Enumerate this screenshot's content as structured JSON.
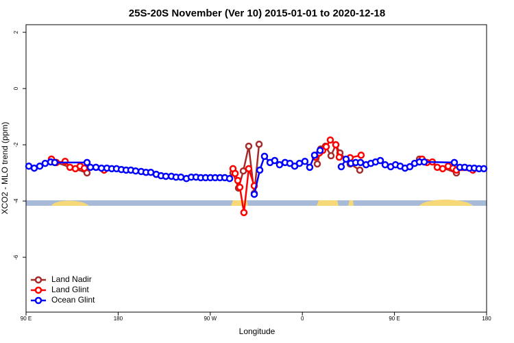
{
  "chart_data": {
    "type": "line",
    "title": "25S-20S November (Ver 10)   2015-01-01 to 2020-12-18",
    "xlabel": "Longitude",
    "ylabel": "XCO2 - MLO trend (ppm)",
    "xlim": [
      90,
      540
    ],
    "ylim": [
      -7.95,
      2.27
    ],
    "xticks": [
      {
        "value": 90,
        "label": "90 E"
      },
      {
        "value": 180,
        "label": "180"
      },
      {
        "value": 270,
        "label": "90 W"
      },
      {
        "value": 360,
        "label": "0"
      },
      {
        "value": 450,
        "label": "90 E"
      },
      {
        "value": 540,
        "label": "180"
      }
    ],
    "yticks": [
      2,
      0,
      -2,
      -4,
      -6
    ],
    "grid": false,
    "legend": "bottom-left",
    "series": [
      {
        "name": "Land Nadir",
        "color": "#a52a2a",
        "x": [
          114.8,
          119.5,
          149.6,
          null,
          292.2,
          297.6,
          302.3,
          307.6,
          313,
          317.7,
          null,
          374.6,
          377.9,
          382.6,
          388,
          392.7,
          396.7,
          406.7,
          416.1,
          null,
          474.4,
          510.5
        ],
        "values": [
          -2.51,
          -2.63,
          -3.0,
          null,
          -3.0,
          -3.54,
          -2.93,
          -2.05,
          -3.73,
          -1.98,
          null,
          -2.68,
          -2.15,
          -2.05,
          -2.39,
          -2.0,
          -2.29,
          -2.68,
          -2.9,
          null,
          -2.51,
          -3.0
        ]
      },
      {
        "name": "Land Glint",
        "color": "#ff0000",
        "x": [
          114.8,
          119.5,
          128.2,
          132.9,
          138.2,
          142.9,
          147,
          166.3,
          null,
          292.2,
          294.3,
          296.9,
          298.9,
          302.9,
          307.6,
          313,
          null,
          372.6,
          376.6,
          379.9,
          383.3,
          387.3,
          392.7,
          396,
          406.7,
          417.4,
          null,
          477,
          481.7,
          487,
          491.8,
          497.1,
          502.5,
          507.2,
          510.5,
          526.6
        ],
        "values": [
          -2.51,
          -2.63,
          -2.59,
          -2.8,
          -2.85,
          -2.76,
          -2.83,
          -2.9,
          null,
          -2.85,
          -3.02,
          -3.27,
          -3.51,
          -4.41,
          -2.85,
          -3.46,
          null,
          -2.44,
          -2.29,
          -2.2,
          -2.07,
          -1.83,
          -2.0,
          -2.44,
          -2.46,
          -2.37,
          null,
          -2.51,
          -2.63,
          -2.61,
          -2.8,
          -2.85,
          -2.76,
          -2.83,
          -2.9,
          -2.9
        ]
      },
      {
        "name": "Ocean Glint",
        "color": "#0000ff",
        "x": [
          92.7,
          98,
          103.4,
          108.7,
          114.1,
          118.1,
          149.6,
          152.9,
          158.3,
          163.7,
          169,
          173.7,
          178.4,
          183.1,
          187.8,
          192.4,
          197.1,
          202.5,
          207.2,
          211.9,
          217.2,
          221.9,
          226.6,
          232,
          236.6,
          241.3,
          246.7,
          251.4,
          256.1,
          260.7,
          265.4,
          270.1,
          274.8,
          279.5,
          284.2,
          288.9,
          null,
          313,
          318.4,
          323,
          328.4,
          333,
          337.7,
          343.1,
          347.8,
          352.5,
          357.2,
          362.5,
          367.2,
          371.9,
          377.3,
          null,
          398,
          402.7,
          407.4,
          412.1,
          416.8,
          422.2,
          426.9,
          431.5,
          436.2,
          440.9,
          446.3,
          451,
          455.6,
          460.3,
          465,
          469.7,
          474.4,
          479.1,
          508.5,
          513.9,
          518.6,
          523.3,
          528,
          532.6,
          537.3
        ],
        "values": [
          -2.76,
          -2.83,
          -2.76,
          -2.66,
          -2.61,
          -2.63,
          -2.63,
          -2.8,
          -2.8,
          -2.83,
          -2.83,
          -2.85,
          -2.85,
          -2.88,
          -2.9,
          -2.9,
          -2.93,
          -2.95,
          -2.98,
          -2.98,
          -3.05,
          -3.1,
          -3.12,
          -3.12,
          -3.15,
          -3.15,
          -3.2,
          -3.15,
          -3.15,
          -3.17,
          -3.17,
          -3.17,
          -3.17,
          -3.17,
          -3.17,
          -3.2,
          null,
          -3.76,
          -2.9,
          -2.41,
          -2.63,
          -2.56,
          -2.71,
          -2.63,
          -2.66,
          -2.76,
          -2.66,
          -2.59,
          -2.8,
          -2.37,
          -2.2,
          null,
          -2.78,
          -2.51,
          -2.66,
          -2.63,
          -2.63,
          -2.71,
          -2.66,
          -2.61,
          -2.56,
          -2.71,
          -2.78,
          -2.71,
          -2.76,
          -2.83,
          -2.78,
          -2.66,
          -2.61,
          -2.61,
          -2.63,
          -2.8,
          -2.8,
          -2.83,
          -2.83,
          -2.85,
          -2.85
        ]
      }
    ]
  }
}
